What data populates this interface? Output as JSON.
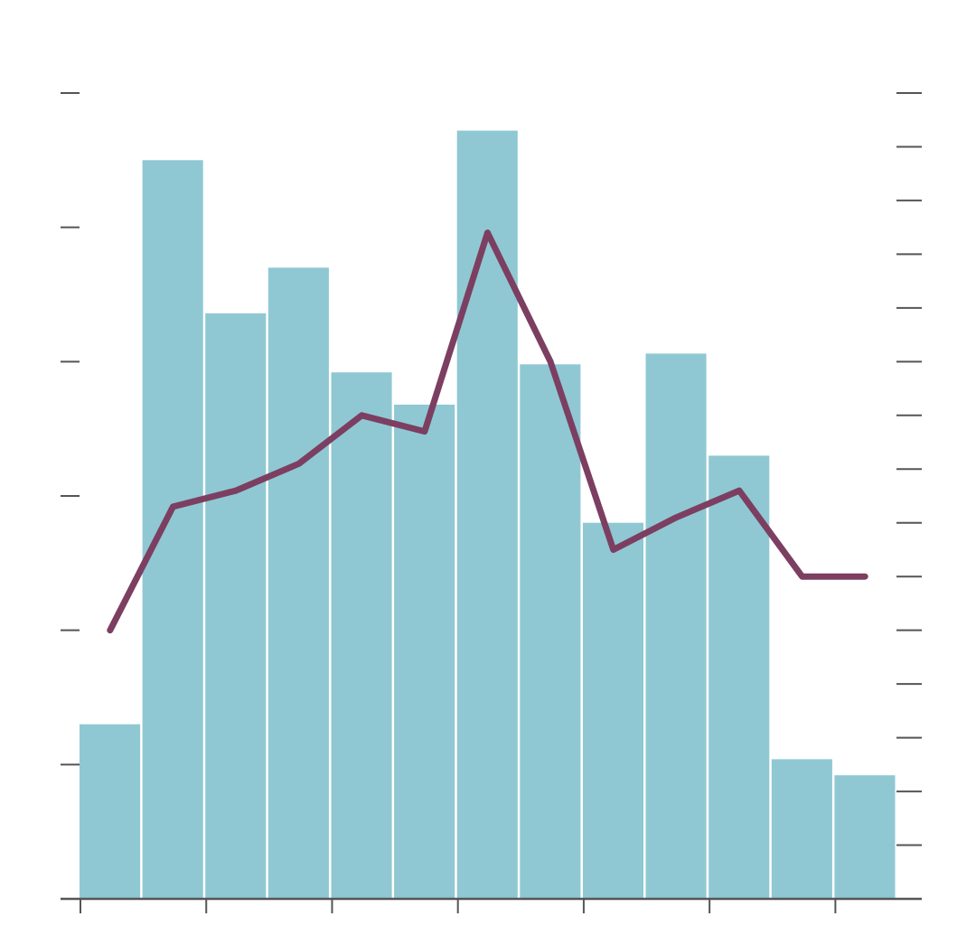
{
  "chart_data": {
    "type": "bar",
    "categories": [
      "",
      "",
      "",
      "",
      "",
      "",
      "",
      "",
      "",
      "",
      "",
      "",
      ""
    ],
    "series": [
      {
        "type": "bar",
        "axis": "left",
        "values": [
          0.65,
          2.75,
          2.18,
          2.35,
          1.96,
          1.84,
          2.86,
          1.99,
          1.4,
          2.03,
          1.65,
          0.52,
          0.46
        ]
      },
      {
        "type": "line",
        "axis": "right",
        "values": [
          5.0,
          7.3,
          7.6,
          8.1,
          9.0,
          8.7,
          12.4,
          10.0,
          6.5,
          7.1,
          7.6,
          6.0,
          6.0
        ]
      }
    ],
    "y_left_lim": [
      0,
      3
    ],
    "y_left_ticks": 6,
    "y_right_lim": [
      0,
      15
    ],
    "y_right_ticks": 15,
    "x_tick_after_bars": [
      0,
      2,
      4,
      6,
      8,
      10,
      12
    ],
    "grid": false,
    "legend": "none",
    "colors": {
      "bars": "#8fc8d3",
      "bar_gap": "#ffffff",
      "line": "#7c3f61",
      "axis": "#555555"
    }
  }
}
